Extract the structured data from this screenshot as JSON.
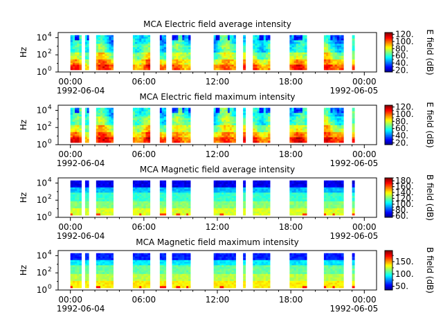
{
  "panels": [
    {
      "title": "MCA  Electric field average intensity",
      "ylabel": "Hz",
      "cbar_label": "E field (dB)",
      "cbar_ticks": [
        "20.",
        "40.",
        "60.",
        "80.",
        "100.",
        "120."
      ],
      "cbar_range": [
        15,
        125
      ],
      "cbar_tick_values": [
        20,
        40,
        60,
        80,
        100,
        120
      ],
      "variant": "E-avg"
    },
    {
      "title": "MCA  Electric field maximum intensity",
      "ylabel": "Hz",
      "cbar_label": "E field (dB)",
      "cbar_ticks": [
        "20.",
        "40.",
        "60.",
        "80.",
        "100.",
        "120."
      ],
      "cbar_range": [
        15,
        125
      ],
      "cbar_tick_values": [
        20,
        40,
        60,
        80,
        100,
        120
      ],
      "variant": "E-max"
    },
    {
      "title": "MCA  Magnetic field average intensity",
      "ylabel": "Hz",
      "cbar_label": "B field (dB)",
      "cbar_ticks": [
        "60.",
        "80.",
        "100.",
        "120.",
        "140.",
        "160.",
        "180."
      ],
      "cbar_range": [
        55,
        190
      ],
      "cbar_tick_values": [
        60,
        80,
        100,
        120,
        140,
        160,
        180
      ],
      "variant": "B-avg"
    },
    {
      "title": "MCA  Magnetic field maximum intensity",
      "ylabel": "Hz",
      "cbar_label": "B field (dB)",
      "cbar_ticks": [
        "50.",
        "100.",
        "150."
      ],
      "cbar_range": [
        35,
        195
      ],
      "cbar_tick_values": [
        50,
        100,
        150
      ],
      "variant": "B-max"
    }
  ],
  "x_ticks": [
    "00:00",
    "06:00",
    "12:00",
    "18:00",
    "00:00"
  ],
  "x_tick_hours": [
    0,
    6,
    12,
    18,
    24
  ],
  "x_date_start": "1992-06-04",
  "x_date_end": "1992-06-05",
  "y_ticks": [
    "10",
    "10",
    "10"
  ],
  "y_tick_exponents": [
    "0",
    "2",
    "4"
  ],
  "chart_data": {
    "type": "heatmap",
    "x_axis": "time (UT), 1992-06-04 00:00 to 1992-06-05 01:00",
    "xlim_hours": [
      -1,
      25
    ],
    "y_axis": "frequency (Hz), log scale",
    "ylim_log10": [
      0,
      4.6
    ],
    "data_segments_hours": [
      [
        0.0,
        0.9
      ],
      [
        1.2,
        1.5
      ],
      [
        2.1,
        3.5
      ],
      [
        5.1,
        6.5
      ],
      [
        7.3,
        7.8
      ],
      [
        8.3,
        9.8
      ],
      [
        11.7,
        13.5
      ],
      [
        14.1,
        14.3
      ],
      [
        14.9,
        16.3
      ],
      [
        17.9,
        19.3
      ],
      [
        20.7,
        22.3
      ],
      [
        23.0,
        23.2
      ]
    ],
    "colormap": "jet"
  }
}
